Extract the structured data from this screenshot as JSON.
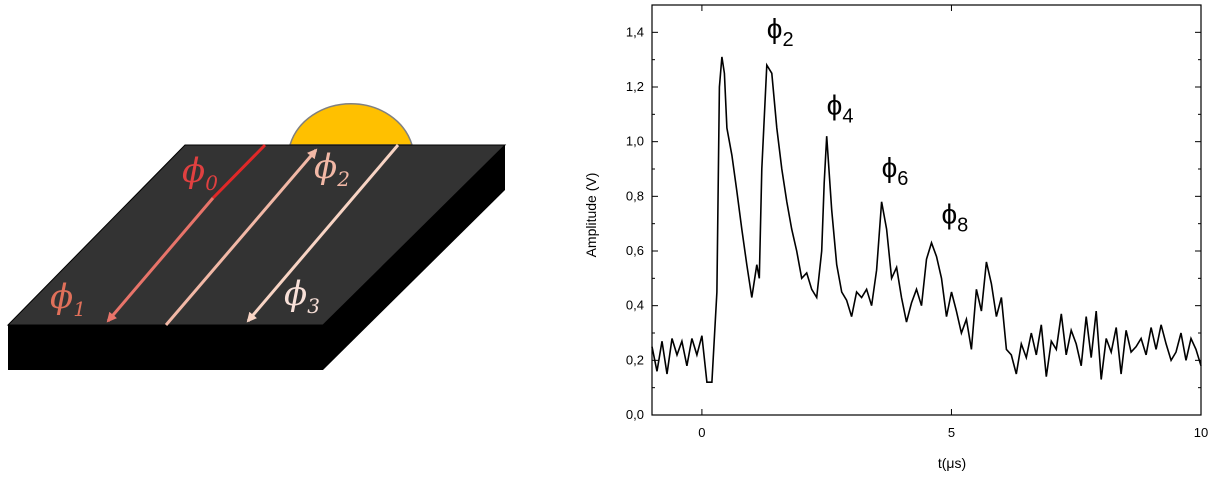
{
  "diagram": {
    "labels": [
      "ϕ",
      "0",
      "ϕ",
      "1",
      "ϕ",
      "2",
      "ϕ",
      "3"
    ],
    "colors": {
      "slab_top": "#333333",
      "slab_side": "#000000",
      "droplet": "#FFC000",
      "line_phi0": "#E02828",
      "line_phi1": "#E8746A",
      "line_phi2": "#F2B8A6",
      "line_phi3": "#F8D4C4",
      "label_phi0": "#E04040",
      "label_phi1": "#E0705A",
      "label_phi2": "#F2B8A6",
      "label_phi3": "#F8E0D8"
    }
  },
  "chart_data": {
    "type": "line",
    "xlabel": "t(μs)",
    "ylabel": "Amplitude (V)",
    "xlim": [
      -1,
      10
    ],
    "ylim": [
      0,
      1.5
    ],
    "xticks": [
      0,
      5,
      10
    ],
    "xtick_labels": [
      "0",
      "5",
      "10"
    ],
    "yticks": [
      0,
      0.2,
      0.4,
      0.6,
      0.8,
      1.0,
      1.2,
      1.4
    ],
    "ytick_labels": [
      "0,0",
      "0,2",
      "0,4",
      "0,6",
      "0,8",
      "1,0",
      "1,2",
      "1,4"
    ],
    "grid": false,
    "annotations": [
      {
        "symbol": "ϕ",
        "sub": "2",
        "x": 1.3,
        "y": 1.38
      },
      {
        "symbol": "ϕ",
        "sub": "4",
        "x": 2.5,
        "y": 1.1
      },
      {
        "symbol": "ϕ",
        "sub": "6",
        "x": 3.6,
        "y": 0.87
      },
      {
        "symbol": "ϕ",
        "sub": "8",
        "x": 4.8,
        "y": 0.7
      }
    ],
    "series": [
      {
        "color": "#000000",
        "x": [
          -1.0,
          -0.9,
          -0.8,
          -0.7,
          -0.6,
          -0.5,
          -0.4,
          -0.3,
          -0.2,
          -0.1,
          0.0,
          0.1,
          0.2,
          0.3,
          0.35,
          0.4,
          0.45,
          0.5,
          0.6,
          0.7,
          0.8,
          0.9,
          1.0,
          1.1,
          1.15,
          1.2,
          1.3,
          1.4,
          1.5,
          1.6,
          1.7,
          1.8,
          1.9,
          2.0,
          2.1,
          2.2,
          2.3,
          2.4,
          2.45,
          2.5,
          2.6,
          2.7,
          2.8,
          2.9,
          3.0,
          3.1,
          3.2,
          3.3,
          3.4,
          3.5,
          3.6,
          3.7,
          3.8,
          3.9,
          4.0,
          4.1,
          4.2,
          4.3,
          4.4,
          4.5,
          4.6,
          4.7,
          4.8,
          4.9,
          5.0,
          5.1,
          5.2,
          5.3,
          5.4,
          5.5,
          5.6,
          5.7,
          5.8,
          5.9,
          6.0,
          6.1,
          6.2,
          6.3,
          6.4,
          6.5,
          6.6,
          6.7,
          6.8,
          6.9,
          7.0,
          7.1,
          7.2,
          7.3,
          7.4,
          7.5,
          7.6,
          7.7,
          7.8,
          7.9,
          8.0,
          8.1,
          8.2,
          8.3,
          8.4,
          8.5,
          8.6,
          8.7,
          8.8,
          8.9,
          9.0,
          9.1,
          9.2,
          9.3,
          9.4,
          9.5,
          9.6,
          9.7,
          9.8,
          9.9,
          10.0
        ],
        "y": [
          0.25,
          0.16,
          0.27,
          0.15,
          0.28,
          0.22,
          0.27,
          0.18,
          0.28,
          0.22,
          0.29,
          0.12,
          0.12,
          0.45,
          1.2,
          1.31,
          1.25,
          1.05,
          0.95,
          0.82,
          0.68,
          0.55,
          0.43,
          0.55,
          0.5,
          0.9,
          1.28,
          1.25,
          1.05,
          0.9,
          0.78,
          0.68,
          0.6,
          0.5,
          0.52,
          0.46,
          0.43,
          0.6,
          0.85,
          1.02,
          0.75,
          0.55,
          0.45,
          0.42,
          0.36,
          0.45,
          0.43,
          0.46,
          0.4,
          0.53,
          0.78,
          0.68,
          0.5,
          0.54,
          0.43,
          0.34,
          0.41,
          0.46,
          0.4,
          0.57,
          0.63,
          0.58,
          0.5,
          0.36,
          0.45,
          0.38,
          0.3,
          0.35,
          0.24,
          0.46,
          0.38,
          0.56,
          0.48,
          0.36,
          0.43,
          0.24,
          0.22,
          0.15,
          0.26,
          0.21,
          0.3,
          0.22,
          0.33,
          0.14,
          0.27,
          0.24,
          0.37,
          0.22,
          0.31,
          0.26,
          0.18,
          0.36,
          0.21,
          0.38,
          0.13,
          0.28,
          0.23,
          0.32,
          0.15,
          0.31,
          0.23,
          0.25,
          0.28,
          0.22,
          0.32,
          0.24,
          0.33,
          0.26,
          0.2,
          0.23,
          0.3,
          0.2,
          0.28,
          0.24,
          0.18
        ]
      }
    ]
  }
}
